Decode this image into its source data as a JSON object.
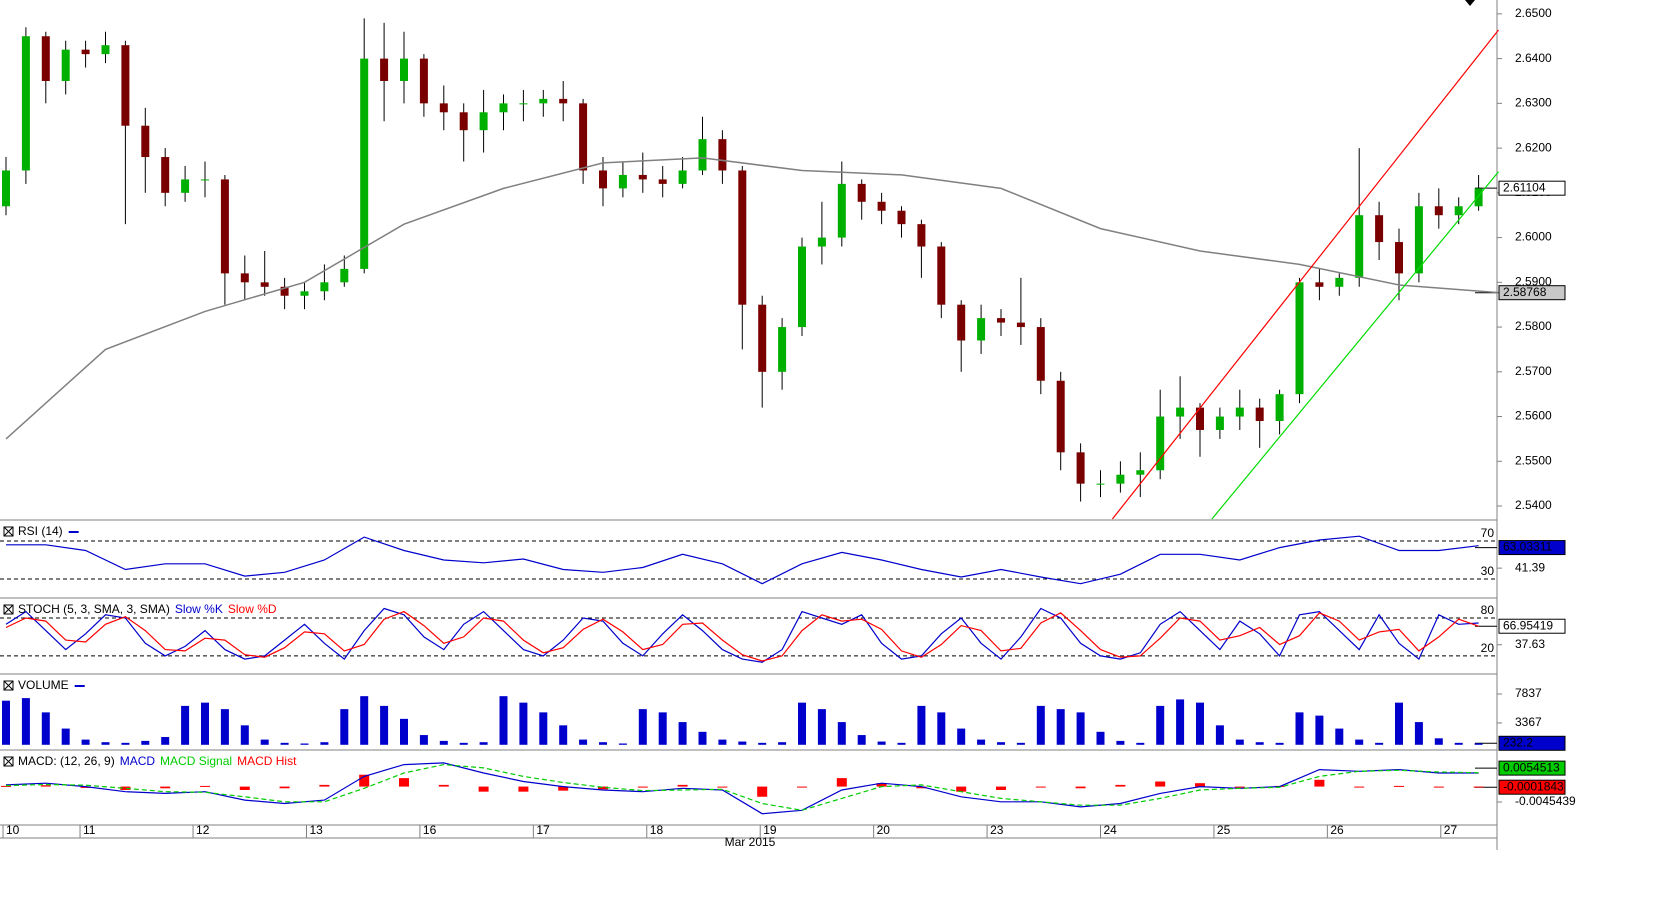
{
  "chart_data": [
    {
      "type": "candlestick",
      "up_color": "#00b000",
      "down_color": "#7a0000",
      "wick_color": "#000000",
      "candles": [
        [
          2.607,
          2.618,
          2.605,
          2.615
        ],
        [
          2.615,
          2.647,
          2.612,
          2.645
        ],
        [
          2.645,
          2.646,
          2.63,
          2.635
        ],
        [
          2.635,
          2.644,
          2.632,
          2.642
        ],
        [
          2.642,
          2.644,
          2.638,
          2.641
        ],
        [
          2.641,
          2.646,
          2.639,
          2.643
        ],
        [
          2.643,
          2.644,
          2.603,
          2.625
        ],
        [
          2.625,
          2.629,
          2.61,
          2.618
        ],
        [
          2.618,
          2.62,
          2.607,
          2.61
        ],
        [
          2.61,
          2.616,
          2.608,
          2.613
        ],
        [
          2.613,
          2.617,
          2.609,
          2.613
        ],
        [
          2.613,
          2.614,
          2.585,
          2.592
        ],
        [
          2.592,
          2.596,
          2.586,
          2.59
        ],
        [
          2.59,
          2.597,
          2.587,
          2.589
        ],
        [
          2.589,
          2.591,
          2.584,
          2.587
        ],
        [
          2.587,
          2.59,
          2.584,
          2.588
        ],
        [
          2.588,
          2.594,
          2.586,
          2.59
        ],
        [
          2.59,
          2.596,
          2.589,
          2.593
        ],
        [
          2.593,
          2.649,
          2.592,
          2.64
        ],
        [
          2.64,
          2.648,
          2.626,
          2.635
        ],
        [
          2.635,
          2.646,
          2.63,
          2.64
        ],
        [
          2.64,
          2.641,
          2.627,
          2.63
        ],
        [
          2.63,
          2.634,
          2.624,
          2.628
        ],
        [
          2.628,
          2.63,
          2.617,
          2.624
        ],
        [
          2.624,
          2.633,
          2.619,
          2.628
        ],
        [
          2.628,
          2.632,
          2.624,
          2.63
        ],
        [
          2.63,
          2.633,
          2.626,
          2.63
        ],
        [
          2.63,
          2.633,
          2.627,
          2.631
        ],
        [
          2.631,
          2.635,
          2.626,
          2.63
        ],
        [
          2.63,
          2.631,
          2.612,
          2.615
        ],
        [
          2.615,
          2.618,
          2.607,
          2.611
        ],
        [
          2.611,
          2.617,
          2.609,
          2.614
        ],
        [
          2.614,
          2.619,
          2.61,
          2.613
        ],
        [
          2.613,
          2.616,
          2.609,
          2.612
        ],
        [
          2.612,
          2.618,
          2.611,
          2.615
        ],
        [
          2.615,
          2.627,
          2.614,
          2.622
        ],
        [
          2.622,
          2.624,
          2.612,
          2.615
        ],
        [
          2.615,
          2.616,
          2.575,
          2.585
        ],
        [
          2.585,
          2.587,
          2.562,
          2.57
        ],
        [
          2.57,
          2.582,
          2.566,
          2.58
        ],
        [
          2.58,
          2.6,
          2.578,
          2.598
        ],
        [
          2.598,
          2.608,
          2.594,
          2.6
        ],
        [
          2.6,
          2.617,
          2.598,
          2.612
        ],
        [
          2.612,
          2.613,
          2.604,
          2.608
        ],
        [
          2.608,
          2.61,
          2.603,
          2.606
        ],
        [
          2.606,
          2.607,
          2.6,
          2.603
        ],
        [
          2.603,
          2.604,
          2.591,
          2.598
        ],
        [
          2.598,
          2.599,
          2.582,
          2.585
        ],
        [
          2.585,
          2.586,
          2.57,
          2.577
        ],
        [
          2.577,
          2.585,
          2.574,
          2.582
        ],
        [
          2.582,
          2.584,
          2.578,
          2.581
        ],
        [
          2.581,
          2.591,
          2.576,
          2.58
        ],
        [
          2.58,
          2.582,
          2.565,
          2.568
        ],
        [
          2.568,
          2.57,
          2.548,
          2.552
        ],
        [
          2.552,
          2.554,
          2.541,
          2.545
        ],
        [
          2.545,
          2.548,
          2.542,
          2.545
        ],
        [
          2.545,
          2.55,
          2.543,
          2.547
        ],
        [
          2.547,
          2.552,
          2.542,
          2.548
        ],
        [
          2.548,
          2.566,
          2.546,
          2.56
        ],
        [
          2.56,
          2.569,
          2.555,
          2.562
        ],
        [
          2.562,
          2.563,
          2.551,
          2.557
        ],
        [
          2.557,
          2.562,
          2.555,
          2.56
        ],
        [
          2.56,
          2.566,
          2.557,
          2.562
        ],
        [
          2.562,
          2.564,
          2.553,
          2.559
        ],
        [
          2.559,
          2.566,
          2.556,
          2.565
        ],
        [
          2.565,
          2.591,
          2.563,
          2.59
        ],
        [
          2.59,
          2.593,
          2.586,
          2.589
        ],
        [
          2.589,
          2.592,
          2.587,
          2.591
        ],
        [
          2.591,
          2.62,
          2.589,
          2.605
        ],
        [
          2.605,
          2.608,
          2.595,
          2.599
        ],
        [
          2.599,
          2.602,
          2.586,
          2.592
        ],
        [
          2.592,
          2.61,
          2.59,
          2.607
        ],
        [
          2.607,
          2.611,
          2.602,
          2.605
        ],
        [
          2.605,
          2.609,
          2.603,
          2.607
        ],
        [
          2.607,
          2.614,
          2.606,
          2.611
        ]
      ],
      "ma": {
        "color": "#808080",
        "x": [
          0,
          5,
          10,
          15,
          20,
          25,
          30,
          35,
          40,
          45,
          50,
          55,
          60,
          65,
          70,
          75
        ],
        "values": [
          2.555,
          2.575,
          2.5835,
          2.59,
          2.603,
          2.611,
          2.6167,
          2.6178,
          2.615,
          2.614,
          2.611,
          2.602,
          2.597,
          2.594,
          2.5894,
          2.5877
        ]
      },
      "trendlines": [
        {
          "color": "#ff0000",
          "x": [
            55.6,
            75
          ],
          "values": [
            2.5371,
            2.6464
          ]
        },
        {
          "color": "#00dd00",
          "x": [
            60.6,
            75
          ],
          "values": [
            2.5371,
            2.6147
          ]
        }
      ],
      "ylim": [
        2.5371,
        2.6531
      ],
      "yticks": [
        {
          "value": 2.65,
          "label": "2.6500"
        },
        {
          "value": 2.64,
          "label": "2.6400"
        },
        {
          "value": 2.63,
          "label": "2.6300"
        },
        {
          "value": 2.62,
          "label": "2.6200"
        },
        {
          "value": 2.61,
          "label": "2.6100"
        },
        {
          "value": 2.6,
          "label": "2.6000"
        },
        {
          "value": 2.59,
          "label": "2.5900"
        },
        {
          "value": 2.58,
          "label": "2.5800"
        },
        {
          "value": 2.57,
          "label": "2.5700"
        },
        {
          "value": 2.56,
          "label": "2.5600"
        },
        {
          "value": 2.55,
          "label": "2.5500"
        },
        {
          "value": 2.54,
          "label": "2.5400"
        }
      ],
      "last_values": [
        2.61104,
        2.58768
      ],
      "last_colors": [
        "#ffffff",
        "#c8c8c8"
      ],
      "last_text_colors": [
        "#000000",
        "#000000"
      ]
    },
    {
      "type": "line",
      "title": "RSI (14)",
      "color": "#0000cc",
      "x": [
        0,
        2,
        4,
        6,
        8,
        10,
        12,
        14,
        16,
        18,
        20,
        22,
        24,
        26,
        28,
        30,
        32,
        34,
        36,
        38,
        40,
        42,
        44,
        46,
        48,
        50,
        52,
        54,
        56,
        58,
        60,
        62,
        64,
        66,
        68,
        70,
        72,
        74
      ],
      "values": [
        66,
        66,
        60,
        40,
        46,
        46,
        33,
        37,
        50,
        74,
        60,
        50,
        47,
        51,
        40,
        37,
        42,
        56,
        46,
        25,
        46,
        58,
        50,
        40,
        32,
        40,
        32,
        25,
        35,
        56,
        56,
        50,
        63,
        71,
        75,
        60,
        60,
        65
      ],
      "ylim": [
        11,
        91
      ],
      "levels": [
        70,
        30
      ],
      "yticks": [
        41.39
      ],
      "last_values": [
        63.03311
      ],
      "last_colors": [
        "#0000cc"
      ],
      "last_text_colors": [
        "#ffffff"
      ]
    },
    {
      "type": "line",
      "title": "STOCH (5, 3, SMA, 3, SMA)",
      "series": [
        {
          "name": "Slow %K",
          "color": "#0000cc",
          "values": [
            70,
            90,
            60,
            30,
            55,
            85,
            80,
            40,
            20,
            35,
            60,
            30,
            15,
            20,
            45,
            70,
            40,
            15,
            60,
            95,
            85,
            50,
            30,
            70,
            90,
            60,
            30,
            20,
            45,
            80,
            75,
            40,
            20,
            55,
            85,
            60,
            30,
            15,
            10,
            30,
            90,
            80,
            70,
            85,
            40,
            15,
            20,
            55,
            80,
            40,
            15,
            50,
            95,
            80,
            40,
            20,
            15,
            25,
            70,
            90,
            60,
            30,
            75,
            55,
            20,
            85,
            90,
            60,
            30,
            85,
            40,
            15,
            85,
            70,
            72
          ]
        },
        {
          "name": "Slow %D",
          "color": "#ff0000",
          "values": [
            65,
            80,
            75,
            45,
            42,
            70,
            82,
            60,
            30,
            28,
            48,
            45,
            22,
            18,
            33,
            58,
            55,
            28,
            38,
            78,
            90,
            68,
            40,
            50,
            80,
            75,
            45,
            25,
            33,
            62,
            78,
            58,
            30,
            38,
            70,
            72,
            45,
            22,
            12,
            20,
            60,
            85,
            75,
            78,
            62,
            28,
            18,
            38,
            68,
            60,
            28,
            32,
            72,
            88,
            60,
            30,
            18,
            20,
            48,
            80,
            75,
            45,
            52,
            65,
            38,
            52,
            88,
            75,
            45,
            58,
            62,
            28,
            50,
            78,
            67
          ]
        }
      ],
      "ylim": [
        -7,
        110
      ],
      "levels": [
        80,
        20
      ],
      "yticks": [
        37.63
      ],
      "last_values": [
        66.95419
      ],
      "last_colors": [
        "#ffffff"
      ],
      "last_text_colors": [
        "#000000"
      ]
    },
    {
      "type": "bar",
      "title": "VOLUME",
      "color": "#0000cc",
      "values": [
        6800,
        7200,
        5000,
        2500,
        800,
        400,
        300,
        600,
        1200,
        6000,
        6500,
        5500,
        3000,
        800,
        300,
        200,
        400,
        5500,
        7500,
        6000,
        4000,
        1500,
        600,
        300,
        400,
        7500,
        6500,
        5000,
        3000,
        800,
        400,
        200,
        5500,
        5000,
        3500,
        2000,
        800,
        500,
        300,
        400,
        6500,
        5500,
        3500,
        1500,
        500,
        300,
        6000,
        5000,
        2500,
        800,
        400,
        300,
        6000,
        5500,
        5000,
        2000,
        600,
        300,
        6000,
        7000,
        6500,
        3000,
        800,
        400,
        300,
        5000,
        4500,
        2500,
        800,
        300,
        6500,
        3500,
        1000,
        300,
        232
      ],
      "ylim": [
        -650,
        10765
      ],
      "yticks": [
        7837,
        3367
      ],
      "last_values": [
        232.2
      ],
      "last_colors": [
        "#0000cc"
      ],
      "last_text_colors": [
        "#ffffff"
      ]
    },
    {
      "type": "macd",
      "title": "MACD: (12, 26, 9)",
      "x": [
        0,
        2,
        4,
        6,
        8,
        10,
        12,
        14,
        16,
        18,
        20,
        22,
        24,
        26,
        28,
        30,
        32,
        34,
        36,
        38,
        40,
        42,
        44,
        46,
        48,
        50,
        52,
        54,
        56,
        58,
        60,
        62,
        64,
        66,
        68,
        70,
        72,
        74
      ],
      "series": [
        {
          "name": "MACD",
          "color": "#0000cc",
          "values": [
            0.0005,
            0.001,
            0.0,
            -0.0015,
            -0.002,
            -0.0015,
            -0.004,
            -0.005,
            -0.004,
            0.003,
            0.0065,
            0.007,
            0.004,
            0.0015,
            0.0,
            -0.001,
            -0.0015,
            -0.0005,
            -0.001,
            -0.008,
            -0.007,
            -0.001,
            0.001,
            0.0,
            -0.003,
            -0.0045,
            -0.0045,
            -0.006,
            -0.005,
            -0.002,
            0.0,
            -0.0005,
            0.0,
            0.005,
            0.0045,
            0.005,
            0.004,
            0.004
          ]
        },
        {
          "name": "MACD Signal",
          "color": "#00cc00",
          "values": [
            0.0003,
            0.0006,
            0.0004,
            -0.0005,
            -0.0015,
            -0.0017,
            -0.003,
            -0.0045,
            -0.0045,
            -0.0005,
            0.004,
            0.0065,
            0.0055,
            0.003,
            0.0012,
            -0.0002,
            -0.0012,
            -0.001,
            -0.0008,
            -0.005,
            -0.007,
            -0.0035,
            0.0,
            0.0005,
            -0.0015,
            -0.0035,
            -0.0045,
            -0.0055,
            -0.0055,
            -0.0035,
            -0.001,
            -0.0005,
            -0.0002,
            0.003,
            0.0045,
            0.0048,
            0.0043,
            0.0041
          ]
        },
        {
          "name": "MACD Hist",
          "color": "#ff0000",
          "values": [
            0.0002,
            0.0004,
            -0.0004,
            -0.001,
            -0.0005,
            0.0002,
            -0.001,
            -0.0005,
            0.0005,
            0.0035,
            0.0025,
            0.0005,
            -0.0015,
            -0.0015,
            -0.0012,
            -0.0008,
            -0.0003,
            0.0005,
            -0.0002,
            -0.003,
            0.0,
            0.0025,
            0.001,
            -0.0005,
            -0.0015,
            -0.001,
            0.0,
            -0.0005,
            0.0005,
            0.0015,
            0.001,
            0.0,
            0.0002,
            0.002,
            0.0,
            0.0002,
            -0.0003,
            -0.0001
          ]
        }
      ],
      "ylim": [
        -0.0075,
        0.0105
      ],
      "yticks": [
        -0.0045439
      ],
      "last_values": [
        0.0054513,
        -0.0001843
      ],
      "last_colors": [
        "#00cc00",
        "#ff0000"
      ],
      "last_text_colors": [
        "#000000",
        "#ffffff"
      ],
      "xticks": [
        {
          "value": -0.15,
          "label": "10"
        },
        {
          "value": 3.72,
          "label": "11"
        },
        {
          "value": 9.4,
          "label": "12"
        },
        {
          "value": 15.1,
          "label": "13"
        },
        {
          "value": 20.8,
          "label": "16"
        },
        {
          "value": 26.5,
          "label": "17"
        },
        {
          "value": 32.2,
          "label": "18"
        },
        {
          "value": 37.9,
          "label": "19"
        },
        {
          "value": 43.6,
          "label": "20"
        },
        {
          "value": 49.3,
          "label": "23"
        },
        {
          "value": 55.0,
          "label": "24"
        },
        {
          "value": 60.7,
          "label": "25"
        },
        {
          "value": 66.4,
          "label": "26"
        },
        {
          "value": 72.1,
          "label": "27"
        }
      ],
      "xlabel": "Mar 2015"
    }
  ]
}
